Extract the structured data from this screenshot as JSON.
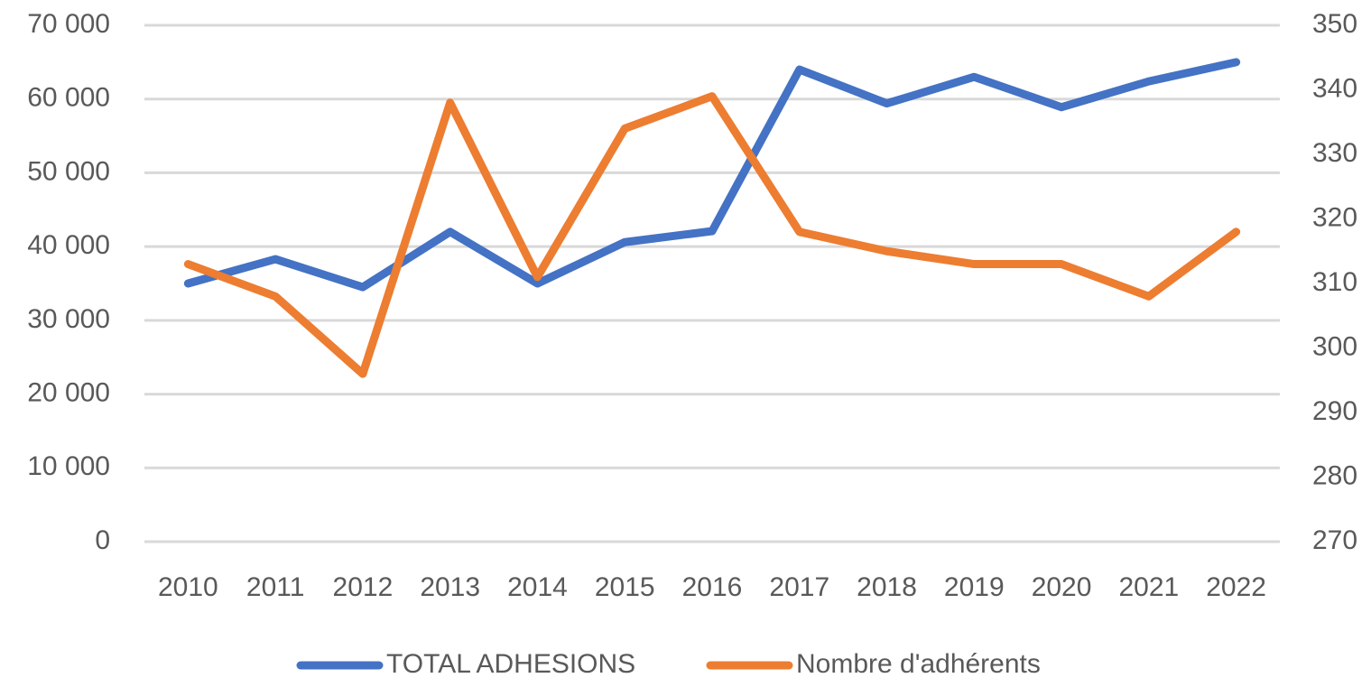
{
  "chart_data": {
    "type": "line",
    "categories": [
      "2010",
      "2011",
      "2012",
      "2013",
      "2014",
      "2015",
      "2016",
      "2017",
      "2018",
      "2019",
      "2020",
      "2021",
      "2022"
    ],
    "series": [
      {
        "name": "TOTAL ADHESIONS",
        "color": "#4472c4",
        "values": [
          35000,
          38300,
          34500,
          42000,
          35000,
          40600,
          42100,
          64000,
          59400,
          63000,
          58900,
          62400,
          65000
        ]
      },
      {
        "name": "Nombre d'adhérents",
        "color": "#ed7d31",
        "axis": "y2",
        "values": [
          313,
          308,
          296,
          338,
          311,
          334,
          339,
          318,
          315,
          313,
          313,
          308,
          318
        ]
      }
    ],
    "ylim": [
      0,
      70000
    ],
    "yticks": [
      0,
      {
        "value": 10000,
        "label": "10 000"
      },
      {
        "value": 20000,
        "label": "20 000"
      },
      {
        "value": 30000,
        "label": "30 000"
      },
      {
        "value": 40000,
        "label": "40 000"
      },
      {
        "value": 50000,
        "label": "50 000"
      },
      {
        "value": 60000,
        "label": "60 000"
      },
      {
        "value": 70000,
        "label": "70 000"
      }
    ],
    "y2lim": [
      270,
      350
    ],
    "y2ticks": [
      270,
      280,
      290,
      300,
      310,
      320,
      330,
      340,
      350
    ],
    "grid": true,
    "legend": "bottom"
  }
}
